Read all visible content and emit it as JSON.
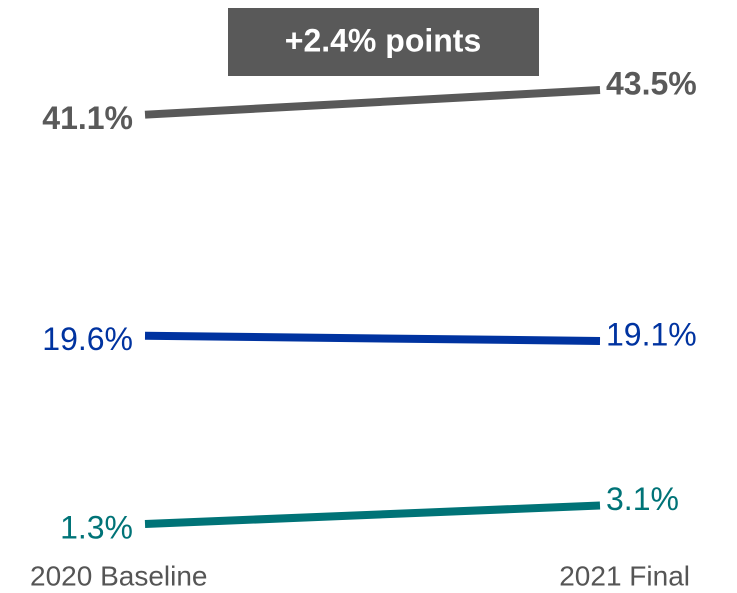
{
  "chart_data": {
    "type": "line",
    "categories": [
      "2020 Baseline",
      "2021 Final"
    ],
    "annotation": "+2.4% points",
    "series": [
      {
        "color": "#595959",
        "values": [
          41.1,
          43.5
        ],
        "value_labels": [
          "41.1%",
          "43.5%"
        ],
        "bold": true
      },
      {
        "color": "#0033a0",
        "values": [
          19.6,
          19.1
        ],
        "value_labels": [
          "19.6%",
          "19.1%"
        ],
        "bold": false
      },
      {
        "color": "#007377",
        "values": [
          1.3,
          3.1
        ],
        "value_labels": [
          "1.3%",
          "3.1%"
        ],
        "bold": false
      }
    ]
  }
}
